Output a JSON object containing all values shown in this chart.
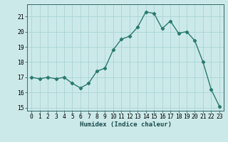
{
  "x": [
    0,
    1,
    2,
    3,
    4,
    5,
    6,
    7,
    8,
    9,
    10,
    11,
    12,
    13,
    14,
    15,
    16,
    17,
    18,
    19,
    20,
    21,
    22,
    23
  ],
  "y": [
    17.0,
    16.9,
    17.0,
    16.9,
    17.0,
    16.6,
    16.3,
    16.6,
    17.4,
    17.6,
    18.8,
    19.5,
    19.7,
    20.3,
    21.3,
    21.2,
    20.2,
    20.7,
    19.9,
    20.0,
    19.4,
    18.0,
    16.2,
    15.1
  ],
  "line_color": "#2a7a6e",
  "marker": "D",
  "marker_size": 2.2,
  "line_width": 1.0,
  "bg_color": "#cce9e9",
  "grid_color": "#aad4d4",
  "xlabel": "Humidex (Indice chaleur)",
  "xlim": [
    -0.5,
    23.5
  ],
  "ylim": [
    14.8,
    21.8
  ],
  "yticks": [
    15,
    16,
    17,
    18,
    19,
    20,
    21
  ],
  "xticks": [
    0,
    1,
    2,
    3,
    4,
    5,
    6,
    7,
    8,
    9,
    10,
    11,
    12,
    13,
    14,
    15,
    16,
    17,
    18,
    19,
    20,
    21,
    22,
    23
  ],
  "xlabel_fontsize": 6.5,
  "tick_fontsize": 5.8
}
